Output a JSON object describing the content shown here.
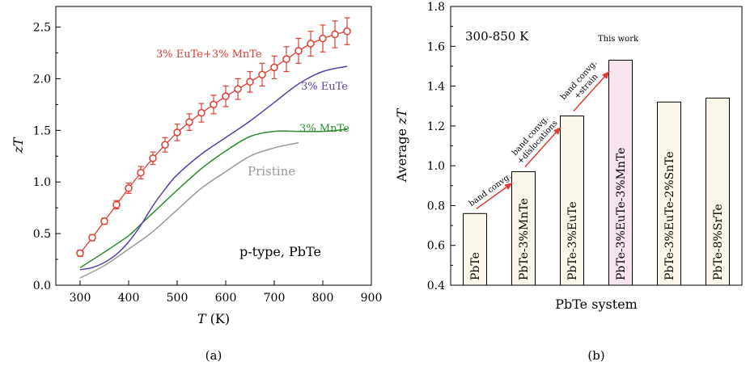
{
  "panels": [
    {
      "label": "(a)",
      "annotation": "p-type, PbTe"
    },
    {
      "label": "(b)",
      "annotation": "300-850 K",
      "this_work_label": "This work",
      "arrow_labels": [
        {
          "lines": [
            "band convg."
          ]
        },
        {
          "lines": [
            "band convg.",
            "+dislocations"
          ]
        },
        {
          "lines": [
            "band convg.",
            "+strain"
          ]
        }
      ]
    }
  ],
  "chart_data": [
    {
      "type": "line",
      "xlabel_italic": "T",
      "xlabel_unit": " (K)",
      "ylabel": "zT",
      "xlim": [
        250,
        900
      ],
      "ylim": [
        0.0,
        2.7
      ],
      "xticks": [
        300,
        400,
        500,
        600,
        700,
        800,
        900
      ],
      "yticks": [
        0.0,
        0.5,
        1.0,
        1.5,
        2.0,
        2.5
      ],
      "series": [
        {
          "name": "3% EuTe+3% MnTe",
          "color": "#e03c31",
          "marker": "circle",
          "x": [
            300,
            325,
            350,
            375,
            400,
            425,
            450,
            475,
            500,
            525,
            550,
            575,
            600,
            625,
            650,
            675,
            700,
            725,
            750,
            775,
            800,
            825,
            850
          ],
          "y": [
            0.31,
            0.46,
            0.62,
            0.78,
            0.94,
            1.09,
            1.23,
            1.36,
            1.48,
            1.58,
            1.67,
            1.75,
            1.83,
            1.9,
            1.97,
            2.04,
            2.11,
            2.19,
            2.27,
            2.34,
            2.39,
            2.43,
            2.46
          ],
          "error": [
            0.03,
            0.03,
            0.03,
            0.04,
            0.05,
            0.06,
            0.06,
            0.07,
            0.08,
            0.08,
            0.09,
            0.09,
            0.1,
            0.1,
            0.1,
            0.11,
            0.11,
            0.12,
            0.12,
            0.12,
            0.13,
            0.13,
            0.13
          ]
        },
        {
          "name": "3% EuTe",
          "color": "#5b3fa8",
          "x": [
            300,
            325,
            350,
            375,
            400,
            425,
            450,
            475,
            500,
            550,
            600,
            650,
            700,
            750,
            800,
            850
          ],
          "y": [
            0.15,
            0.17,
            0.22,
            0.3,
            0.42,
            0.58,
            0.77,
            0.93,
            1.07,
            1.27,
            1.43,
            1.59,
            1.77,
            1.95,
            2.07,
            2.12
          ]
        },
        {
          "name": "3% MnTe",
          "color": "#2e8b2e",
          "x": [
            300,
            350,
            400,
            425,
            450,
            500,
            550,
            600,
            650,
            700,
            750,
            800,
            850
          ],
          "y": [
            0.17,
            0.32,
            0.48,
            0.59,
            0.7,
            0.92,
            1.13,
            1.3,
            1.44,
            1.49,
            1.49,
            1.49,
            1.51
          ]
        },
        {
          "name": "Pristine",
          "color": "#9a9a9a",
          "x": [
            300,
            350,
            400,
            450,
            500,
            550,
            600,
            650,
            700,
            750
          ],
          "y": [
            0.07,
            0.19,
            0.35,
            0.52,
            0.73,
            0.94,
            1.1,
            1.25,
            1.33,
            1.38
          ]
        }
      ]
    },
    {
      "type": "bar",
      "xlabel": "PbTe system",
      "ylabel_prefix": "Average ",
      "ylabel_italic": "zT",
      "ylim": [
        0.4,
        1.8
      ],
      "yticks": [
        0.4,
        0.6,
        0.8,
        1.0,
        1.2,
        1.4,
        1.6,
        1.8
      ],
      "categories": [
        "PbTe",
        "PbTe-3%MnTe",
        "PbTe-3%EuTe",
        "PbTe-3%EuTe-3%MnTe",
        "PbTe-3%EuTe-2%SnTe",
        "PbTe-8%SrTe"
      ],
      "values": [
        0.76,
        0.97,
        1.25,
        1.53,
        1.32,
        1.34
      ],
      "colors": [
        "#fbf7e8",
        "#fbf7e8",
        "#fbf7e8",
        "#f7e4ef",
        "#fbf7e8",
        "#fbf7e8"
      ],
      "highlight_index": 3
    }
  ]
}
